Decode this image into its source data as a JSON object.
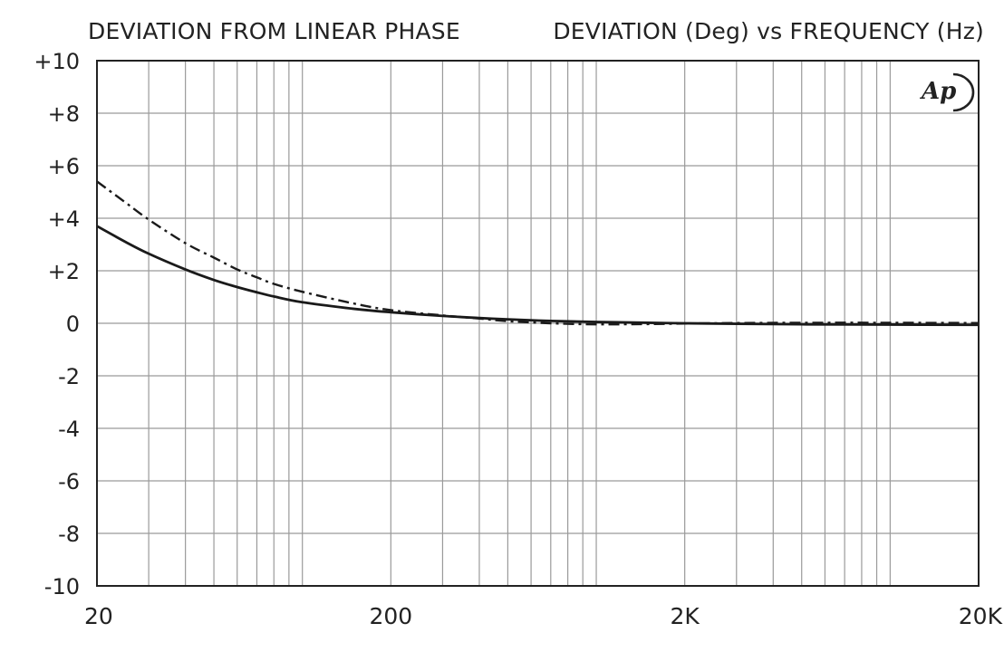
{
  "chart_data": {
    "type": "line",
    "title": "DEVIATION FROM LINEAR PHASE",
    "subtitle": "DEVIATION (Deg) vs FREQUENCY (Hz)",
    "xlabel": "",
    "ylabel": "",
    "x_scale": "log",
    "xlim": [
      20,
      20000
    ],
    "ylim": [
      -10,
      10
    ],
    "grid": true,
    "legend": "none",
    "x_ticks": [
      {
        "value": 20,
        "label": "20"
      },
      {
        "value": 200,
        "label": "200"
      },
      {
        "value": 2000,
        "label": "2K"
      },
      {
        "value": 20000,
        "label": "20K"
      }
    ],
    "y_ticks": [
      {
        "value": 10,
        "label": "+10"
      },
      {
        "value": 8,
        "label": "+8"
      },
      {
        "value": 6,
        "label": "+6"
      },
      {
        "value": 4,
        "label": "+4"
      },
      {
        "value": 2,
        "label": "+2"
      },
      {
        "value": 0,
        "label": "0"
      },
      {
        "value": -2,
        "label": "-2"
      },
      {
        "value": -4,
        "label": "-4"
      },
      {
        "value": -6,
        "label": "-6"
      },
      {
        "value": -8,
        "label": "-8"
      },
      {
        "value": -10,
        "label": "-10"
      }
    ],
    "series": [
      {
        "style": "solid",
        "color": "#1a1a1a",
        "x": [
          20,
          25,
          30,
          40,
          50,
          60,
          70,
          80,
          100,
          150,
          200,
          300,
          400,
          500,
          700,
          1000,
          1500,
          2000,
          3000,
          5000,
          10000,
          20000
        ],
        "y": [
          3.7,
          3.1,
          2.65,
          2.05,
          1.65,
          1.38,
          1.18,
          1.02,
          0.8,
          0.55,
          0.42,
          0.28,
          0.2,
          0.15,
          0.09,
          0.05,
          0.02,
          0.0,
          -0.02,
          -0.04,
          -0.05,
          -0.06
        ]
      },
      {
        "style": "dash-dot",
        "color": "#1a1a1a",
        "x": [
          20,
          25,
          30,
          40,
          50,
          60,
          70,
          80,
          100,
          150,
          200,
          300,
          400,
          500,
          700,
          1000,
          1500,
          2000,
          3000,
          5000,
          10000,
          20000
        ],
        "y": [
          5.4,
          4.6,
          3.95,
          3.05,
          2.5,
          2.05,
          1.75,
          1.5,
          1.2,
          0.75,
          0.5,
          0.3,
          0.18,
          0.08,
          0.0,
          -0.04,
          -0.03,
          -0.01,
          0.01,
          0.02,
          0.02,
          0.01
        ]
      }
    ],
    "logo": "Ap"
  }
}
